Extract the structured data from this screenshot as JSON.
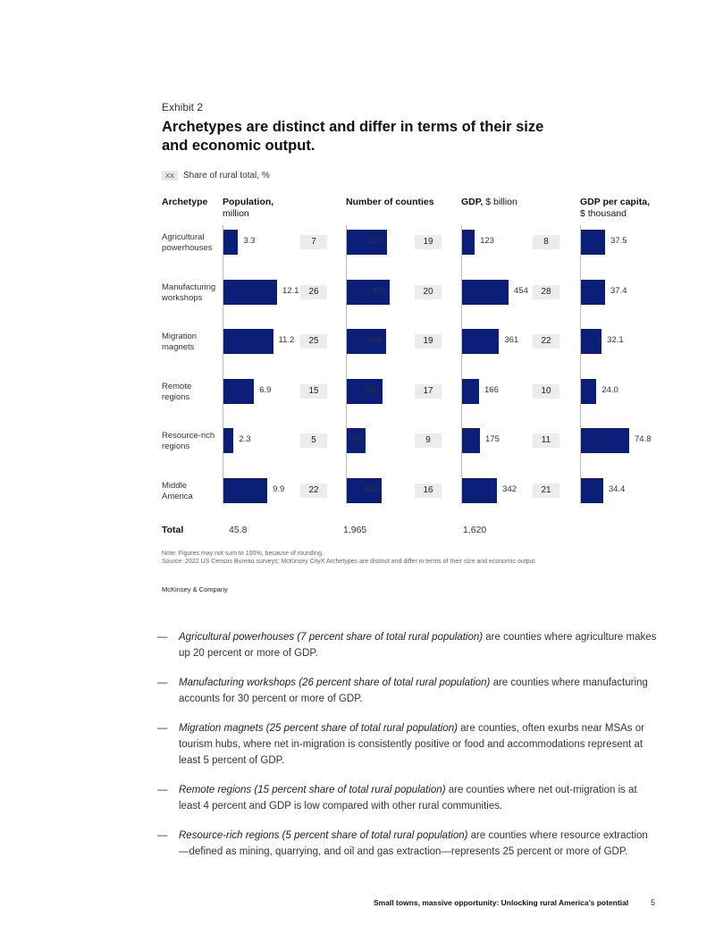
{
  "exhibit": {
    "label": "Exhibit 2",
    "title": "Archetypes are distinct and differ in terms of their size and economic output."
  },
  "legend": {
    "swatch": "XX",
    "label": "Share of rural total, %"
  },
  "colors": {
    "bar": "#0b1f78",
    "share_box": "#ececec",
    "axis": "#bdbdbd"
  },
  "chart_data": {
    "type": "bar",
    "orientation": "horizontal",
    "categories": [
      "Agricultural powerhouses",
      "Manufacturing workshops",
      "Migration magnets",
      "Remote regions",
      "Resource-rich regions",
      "Middle America"
    ],
    "category_lines": [
      [
        "Agricultural",
        "powerhouses"
      ],
      [
        "Manufacturing",
        "workshops"
      ],
      [
        "Migration",
        "magnets"
      ],
      [
        "Remote",
        "regions"
      ],
      [
        "Resource-rich",
        "regions"
      ],
      [
        "Middle",
        "America"
      ]
    ],
    "row_header": "Archetype",
    "total_label": "Total",
    "series": [
      {
        "name": "Population",
        "name_bold": "Population,",
        "unit": "million",
        "values": [
          3.3,
          12.1,
          11.2,
          6.9,
          2.3,
          9.9
        ],
        "labels": [
          "3.3",
          "12.1",
          "11.2",
          "6.9",
          "2.3",
          "9.9"
        ],
        "shares": [
          7,
          26,
          25,
          15,
          5,
          22
        ],
        "total": "45.8"
      },
      {
        "name": "Number of counties",
        "name_bold": "Number of counties",
        "unit": "",
        "values": [
          372,
          400,
          366,
          330,
          174,
          323
        ],
        "labels": [
          "372",
          "400",
          "366",
          "330",
          "174",
          "323"
        ],
        "shares": [
          19,
          20,
          19,
          17,
          9,
          16
        ],
        "total": "1,965"
      },
      {
        "name": "GDP",
        "name_bold": "GDP,",
        "unit": "$ billion",
        "values": [
          123,
          454,
          361,
          166,
          175,
          342
        ],
        "labels": [
          "123",
          "454",
          "361",
          "166",
          "175",
          "342"
        ],
        "shares": [
          8,
          28,
          22,
          10,
          11,
          21
        ],
        "total": "1,620"
      },
      {
        "name": "GDP per capita",
        "name_bold": "GDP per capita,",
        "unit": "$ thousand",
        "values": [
          37.5,
          37.4,
          32.1,
          24.0,
          74.8,
          34.4
        ],
        "labels": [
          "37.5",
          "37.4",
          "32.1",
          "24.0",
          "74.8",
          "34.4"
        ],
        "shares": null,
        "total": ""
      }
    ]
  },
  "note": {
    "line1": "Note: Figures may not sum to 100%, because of rounding.",
    "line2": "Source: 2022 US Census Bureau surveys; McKinsey CityX Archetypes are distinct and differ in terms of their size and economic output."
  },
  "brand": "McKinsey & Company",
  "bullets": [
    {
      "dash": "—",
      "italic": "Agricultural powerhouses (7 percent share of total rural population)",
      "rest": " are counties where agriculture makes up 20 percent or more of GDP."
    },
    {
      "dash": "—",
      "italic": "Manufacturing workshops (26 percent share of total rural population)",
      "rest": " are counties where manufacturing accounts for 30 percent or more of GDP."
    },
    {
      "dash": "—",
      "italic": "Migration magnets (25 percent share of total rural population)",
      "rest": " are counties, often exurbs near MSAs or tourism hubs, where net in-migration is consistently positive or food and accommodations represent at least 5 percent of GDP."
    },
    {
      "dash": "—",
      "italic": "Remote regions (15 percent share of total rural population)",
      "rest": " are counties where net out-migration is at least 4 percent and GDP is low compared with other rural communities."
    },
    {
      "dash": "—",
      "italic": "Resource-rich regions (5 percent share of total rural population)",
      "rest": " are counties where resource extraction—defined as mining, quarrying, and oil and gas extraction—represents 25 percent or more of GDP."
    }
  ],
  "footer": {
    "title": "Small towns, massive opportunity: Unlocking rural America’s potential",
    "page": "5"
  }
}
